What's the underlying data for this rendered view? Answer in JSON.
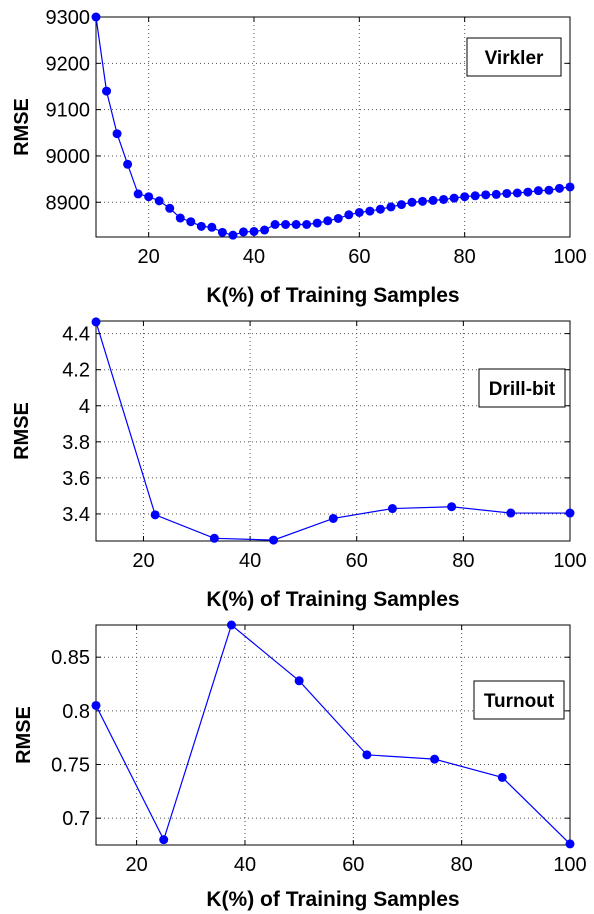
{
  "chart_data": [
    {
      "type": "line",
      "xlabel": "K(%) of Training Samples",
      "ylabel": "RMSE",
      "xlim": [
        10,
        100
      ],
      "ylim": [
        8825,
        9300
      ],
      "xticks": [
        20,
        40,
        60,
        80,
        100
      ],
      "yticks": [
        8900,
        9000,
        9100,
        9200,
        9300
      ],
      "grid": true,
      "legend_placement": "top-right",
      "color": "#0000ff",
      "series": [
        {
          "name": "Virkler",
          "x": [
            10,
            12,
            14,
            16,
            18,
            20,
            22,
            24,
            26,
            28,
            30,
            32,
            34,
            36,
            38,
            40,
            42,
            44,
            46,
            48,
            50,
            52,
            54,
            56,
            58,
            60,
            62,
            64,
            66,
            68,
            70,
            72,
            74,
            76,
            78,
            80,
            82,
            84,
            86,
            88,
            90,
            92,
            94,
            96,
            98,
            100
          ],
          "y": [
            9300,
            9140,
            9048,
            8982,
            8918,
            8912,
            8903,
            8887,
            8866,
            8858,
            8848,
            8846,
            8835,
            8829,
            8836,
            8837,
            8840,
            8852,
            8852,
            8852,
            8852,
            8855,
            8860,
            8865,
            8873,
            8878,
            8881,
            8885,
            8890,
            8895,
            8900,
            8902,
            8904,
            8906,
            8909,
            8912,
            8914,
            8916,
            8917,
            8919,
            8920,
            8922,
            8925,
            8926,
            8930,
            8933
          ]
        }
      ]
    },
    {
      "type": "line",
      "xlabel": "K(%) of Training Samples",
      "ylabel": "RMSE",
      "xlim": [
        11.1,
        100
      ],
      "ylim": [
        3.25,
        4.47
      ],
      "xticks": [
        20,
        40,
        60,
        80,
        100
      ],
      "yticks": [
        3.4,
        3.6,
        3.8,
        4,
        4.2,
        4.4
      ],
      "grid": true,
      "legend_placement": "top-right",
      "color": "#0000ff",
      "series": [
        {
          "name": "Drill-bit",
          "x": [
            11.1,
            22.2,
            33.3,
            44.4,
            55.6,
            66.7,
            77.8,
            88.9,
            100
          ],
          "y": [
            4.465,
            3.395,
            3.265,
            3.255,
            3.375,
            3.43,
            3.44,
            3.405,
            3.405
          ]
        }
      ]
    },
    {
      "type": "line",
      "xlabel": "K(%) of Training Samples",
      "ylabel": "RMSE",
      "xlim": [
        12.5,
        100
      ],
      "ylim": [
        0.675,
        0.88
      ],
      "xticks": [
        20,
        40,
        60,
        80,
        100
      ],
      "yticks": [
        0.7,
        0.75,
        0.8,
        0.85
      ],
      "grid": true,
      "legend_placement": "top-right",
      "color": "#0000ff",
      "series": [
        {
          "name": "Turnout",
          "x": [
            12.5,
            25,
            37.5,
            50,
            62.5,
            75,
            87.5,
            100
          ],
          "y": [
            0.805,
            0.68,
            0.88,
            0.828,
            0.759,
            0.755,
            0.738,
            0.676
          ]
        }
      ]
    }
  ]
}
